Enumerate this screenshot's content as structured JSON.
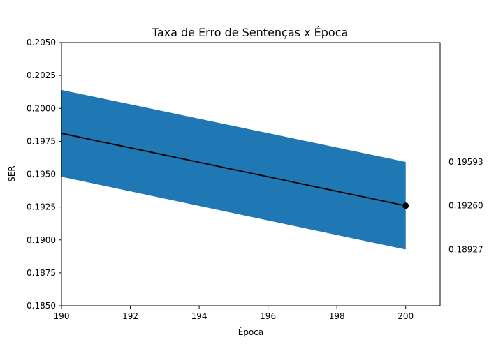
{
  "chart_data": {
    "type": "line",
    "title": "Taxa de Erro de Sentenças x Época",
    "xlabel": "Época",
    "ylabel": "SER",
    "xlim": [
      190,
      201
    ],
    "ylim": [
      0.185,
      0.205
    ],
    "x_ticks": [
      190,
      192,
      194,
      196,
      198,
      200
    ],
    "x_tick_labels": [
      "190",
      "192",
      "194",
      "196",
      "198",
      "200"
    ],
    "y_ticks": [
      0.185,
      0.1875,
      0.19,
      0.1925,
      0.195,
      0.1975,
      0.2,
      0.2025,
      0.205
    ],
    "y_tick_labels": [
      "0.1850",
      "0.1875",
      "0.1900",
      "0.1925",
      "0.1950",
      "0.1975",
      "0.2000",
      "0.2025",
      "0.2050"
    ],
    "grid": false,
    "series": [
      {
        "x": [
          190,
          200
        ],
        "values": [
          0.1981,
          0.1926
        ],
        "color": "#000000",
        "band_upper": [
          0.2014,
          0.19593
        ],
        "band_lower": [
          0.1948,
          0.18927
        ],
        "band_color": "#1f77b4"
      }
    ],
    "end_marker": {
      "x": 200,
      "y": 0.1926,
      "color": "#000000"
    },
    "right_labels": [
      {
        "value": 0.19593,
        "text": "0.19593"
      },
      {
        "value": 0.1926,
        "text": "0.19260"
      },
      {
        "value": 0.18927,
        "text": "0.18927"
      }
    ]
  }
}
